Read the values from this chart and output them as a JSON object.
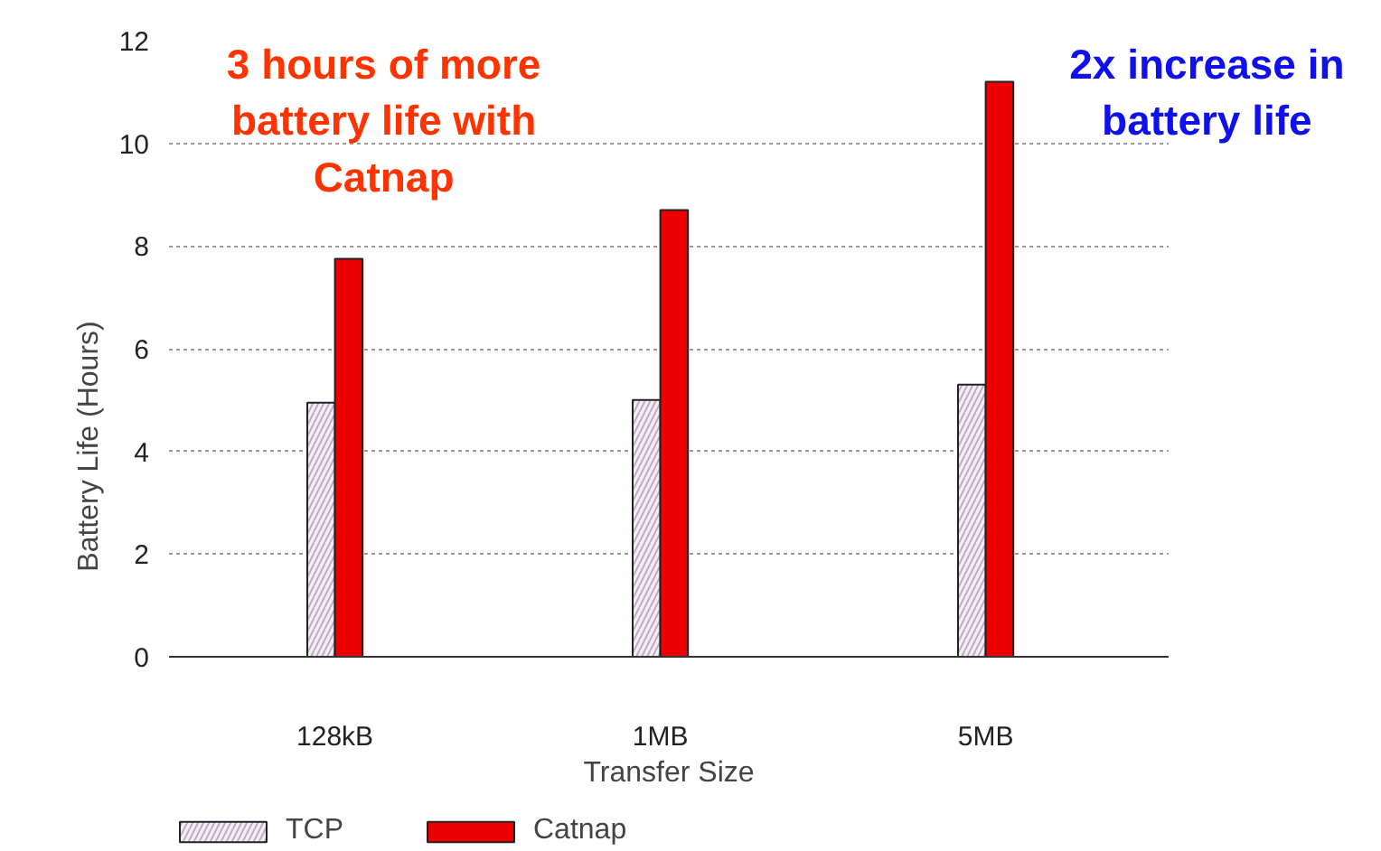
{
  "chart_data": {
    "type": "bar",
    "xlabel": "Transfer Size",
    "ylabel": "Battery Life (Hours)",
    "categories": [
      "128kB",
      "1MB",
      "5MB"
    ],
    "series": [
      {
        "name": "TCP",
        "color": "#f4eef4",
        "values": [
          4.95,
          5.0,
          5.3
        ]
      },
      {
        "name": "Catnap",
        "color": "#ee0000",
        "values": [
          7.75,
          8.7,
          11.2
        ]
      }
    ],
    "ylim": [
      0,
      12
    ],
    "yticks": [
      0,
      2,
      4,
      6,
      8,
      10,
      12
    ],
    "grid": "y",
    "legend": "bottom",
    "annotations": [
      "3 hours of more\nbattery life with\nCatnap",
      "2x increase in\nbattery life"
    ]
  }
}
